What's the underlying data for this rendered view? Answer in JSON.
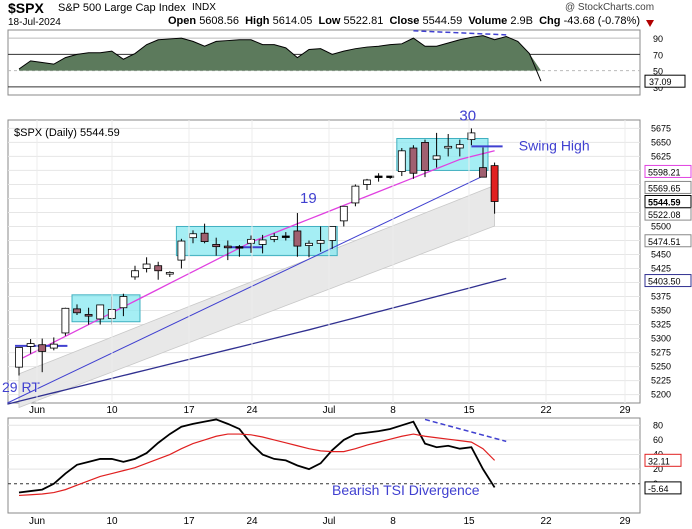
{
  "header": {
    "symbol": "$SPX",
    "name": "S&P 500 Large Cap Index",
    "exchange": "INDX",
    "watermark": "@ StockCharts.com",
    "date": "18-Jul-2024",
    "open_label": "Open",
    "open": "5608.56",
    "high_label": "High",
    "high": "5614.05",
    "low_label": "Low",
    "low": "5522.81",
    "close_label": "Close",
    "close": "5544.59",
    "volume_label": "Volume",
    "volume": "2.9B",
    "chg_label": "Chg",
    "chg": "-43.68 (-0.78%)"
  },
  "colors": {
    "rsi_fill": "#5c7a5c",
    "ema_pink": "#e040e0",
    "sma_blue": "#303090",
    "trend_blue": "#4040d0",
    "box_cyan": "#87e8f0",
    "tsi_signal": "#e02020",
    "down_candle": "#a06070",
    "up_candle": "#ffffff"
  },
  "chart_data": [
    {
      "type": "area",
      "panel": "RSI(14)",
      "ylim": [
        20,
        100
      ],
      "ticks": [
        "90",
        "70",
        "50",
        "30"
      ],
      "levels": [
        70,
        30
      ],
      "last_value": "37.09",
      "values": [
        52,
        62,
        60,
        58,
        66,
        70,
        72,
        72,
        74,
        64,
        71,
        82,
        88,
        89,
        90,
        86,
        80,
        86,
        87,
        88,
        88,
        82,
        82,
        78,
        66,
        76,
        77,
        70,
        74,
        77,
        79,
        80,
        82,
        83,
        90,
        80,
        80,
        84,
        88,
        91,
        93,
        88,
        92,
        86,
        71,
        37
      ]
    },
    {
      "type": "candlestick",
      "panel": "$SPX (Daily) 5544.59",
      "legend": "$SPX (Daily) 5544.59",
      "ylim": [
        5185,
        5690
      ],
      "ticks": [
        "5675",
        "5650",
        "5625",
        "5600",
        "5575",
        "5550",
        "5525",
        "5500",
        "5475",
        "5450",
        "5425",
        "5400",
        "5375",
        "5350",
        "5325",
        "5300",
        "5275",
        "5250",
        "5225",
        "5200"
      ],
      "price_labels": [
        "5598.21",
        "5569.65",
        "5544.59",
        "5522.08",
        "5474.51",
        "5403.50"
      ],
      "x_labels": [
        "Jun",
        "10",
        "17",
        "24",
        "Jul",
        "8",
        "15",
        "22",
        "29"
      ],
      "candles": [
        {
          "o": 5249,
          "h": 5283,
          "l": 5234,
          "c": 5284
        },
        {
          "o": 5286,
          "h": 5299,
          "l": 5273,
          "c": 5291
        },
        {
          "o": 5289,
          "h": 5300,
          "l": 5240,
          "c": 5277
        },
        {
          "o": 5283,
          "h": 5302,
          "l": 5279,
          "c": 5290
        },
        {
          "o": 5310,
          "h": 5355,
          "l": 5305,
          "c": 5354
        },
        {
          "o": 5353,
          "h": 5361,
          "l": 5342,
          "c": 5346
        },
        {
          "o": 5343,
          "h": 5355,
          "l": 5325,
          "c": 5340
        },
        {
          "o": 5335,
          "h": 5360,
          "l": 5325,
          "c": 5360
        },
        {
          "o": 5336,
          "h": 5375,
          "l": 5325,
          "c": 5352
        },
        {
          "o": 5355,
          "h": 5380,
          "l": 5340,
          "c": 5375
        },
        {
          "o": 5410,
          "h": 5430,
          "l": 5405,
          "c": 5421
        },
        {
          "o": 5425,
          "h": 5445,
          "l": 5418,
          "c": 5433
        },
        {
          "o": 5430,
          "h": 5437,
          "l": 5405,
          "c": 5421
        },
        {
          "o": 5415,
          "h": 5420,
          "l": 5410,
          "c": 5418
        },
        {
          "o": 5440,
          "h": 5478,
          "l": 5425,
          "c": 5474
        },
        {
          "o": 5480,
          "h": 5493,
          "l": 5470,
          "c": 5487
        },
        {
          "o": 5488,
          "h": 5505,
          "l": 5470,
          "c": 5473
        },
        {
          "o": 5468,
          "h": 5480,
          "l": 5448,
          "c": 5464
        },
        {
          "o": 5465,
          "h": 5475,
          "l": 5440,
          "c": 5462
        },
        {
          "o": 5462,
          "h": 5467,
          "l": 5446,
          "c": 5464
        },
        {
          "o": 5470,
          "h": 5484,
          "l": 5453,
          "c": 5477
        },
        {
          "o": 5468,
          "h": 5485,
          "l": 5452,
          "c": 5476
        },
        {
          "o": 5477,
          "h": 5488,
          "l": 5472,
          "c": 5482
        },
        {
          "o": 5482,
          "h": 5490,
          "l": 5475,
          "c": 5483
        },
        {
          "o": 5492,
          "h": 5524,
          "l": 5446,
          "c": 5465
        },
        {
          "o": 5466,
          "h": 5475,
          "l": 5445,
          "c": 5470
        },
        {
          "o": 5470,
          "h": 5500,
          "l": 5455,
          "c": 5475
        },
        {
          "o": 5475,
          "h": 5500,
          "l": 5460,
          "c": 5500
        },
        {
          "o": 5510,
          "h": 5535,
          "l": 5500,
          "c": 5536
        },
        {
          "o": 5542,
          "h": 5575,
          "l": 5536,
          "c": 5572
        },
        {
          "o": 5575,
          "h": 5585,
          "l": 5565,
          "c": 5583
        },
        {
          "o": 5588,
          "h": 5595,
          "l": 5580,
          "c": 5590
        },
        {
          "o": 5590,
          "h": 5590,
          "l": 5585,
          "c": 5590
        },
        {
          "o": 5598,
          "h": 5640,
          "l": 5590,
          "c": 5635
        },
        {
          "o": 5640,
          "h": 5645,
          "l": 5585,
          "c": 5595
        },
        {
          "o": 5650,
          "h": 5655,
          "l": 5588,
          "c": 5600
        },
        {
          "o": 5620,
          "h": 5667,
          "l": 5605,
          "c": 5626
        },
        {
          "o": 5640,
          "h": 5665,
          "l": 5625,
          "c": 5643
        },
        {
          "o": 5640,
          "h": 5655,
          "l": 5625,
          "c": 5646
        },
        {
          "o": 5655,
          "h": 5675,
          "l": 5645,
          "c": 5667
        },
        {
          "o": 5605,
          "h": 5641,
          "l": 5590,
          "c": 5588
        },
        {
          "o": 5608.56,
          "h": 5614.05,
          "l": 5522.81,
          "c": 5544.59
        }
      ],
      "annotations": [
        {
          "text": "29 RT"
        },
        {
          "text": "19"
        },
        {
          "text": "30"
        },
        {
          "text": "Swing High"
        }
      ]
    },
    {
      "type": "line",
      "panel": "TSI",
      "ylim": [
        -40,
        90
      ],
      "ticks": [
        "80",
        "60",
        "40",
        "20",
        "0"
      ],
      "last_values": [
        "32.11",
        "-5.64"
      ],
      "series": [
        {
          "values": [
            -12,
            -10,
            -8,
            0,
            14,
            26,
            30,
            34,
            34,
            30,
            34,
            42,
            56,
            68,
            78,
            82,
            85,
            88,
            82,
            75,
            55,
            40,
            34,
            32,
            25,
            20,
            28,
            46,
            60,
            68,
            70,
            72,
            75,
            80,
            85,
            55,
            50,
            52,
            48,
            50,
            20,
            -5
          ]
        },
        {
          "values": [
            -16,
            -15,
            -14,
            -12,
            -8,
            -2,
            4,
            10,
            14,
            18,
            22,
            28,
            34,
            40,
            48,
            55,
            60,
            65,
            68,
            68,
            67,
            64,
            60,
            56,
            52,
            48,
            45,
            44,
            44,
            48,
            53,
            57,
            61,
            65,
            68,
            65,
            63,
            61,
            59,
            57,
            48,
            32
          ]
        }
      ],
      "annotations": [
        {
          "text": "Bearish TSI Divergence"
        }
      ]
    }
  ]
}
